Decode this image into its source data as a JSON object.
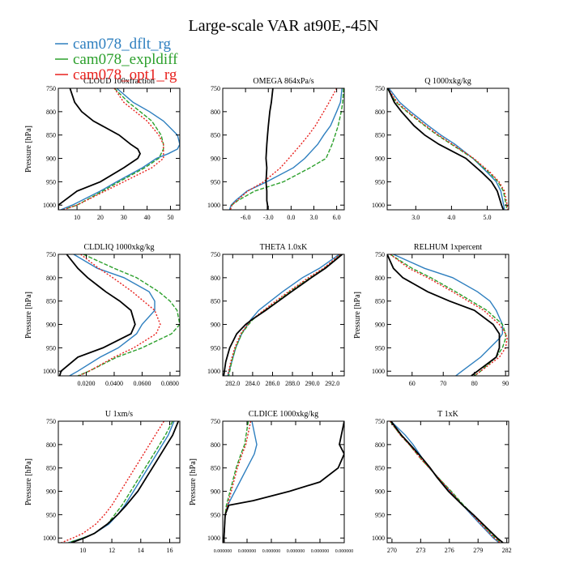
{
  "title": "Large-scale VAR at90E,-45N",
  "legend": {
    "position": "top-left",
    "items": [
      {
        "label": "cam078_dflt_rg",
        "color": "#2e7fbf"
      },
      {
        "label": "cam078_expldiff",
        "color": "#2ca02c"
      },
      {
        "label": "cam078_opt1_rg",
        "color": "#e8211d"
      }
    ]
  },
  "chart_data": [
    {
      "type": "line",
      "title": "CLOUD 100xfraction",
      "ylabel": "Pressure [hPa]",
      "xlim": [
        2,
        54
      ],
      "ylim": [
        1010,
        750
      ],
      "y_inverted": true,
      "xticks": [
        10,
        20,
        30,
        40,
        50
      ],
      "xtick_labels": [
        "10",
        "20",
        "30",
        "40",
        "50"
      ],
      "yticks": [
        750,
        800,
        850,
        900,
        950,
        1000
      ],
      "y": [
        750,
        780,
        800,
        820,
        850,
        870,
        880,
        890,
        900,
        920,
        950,
        970,
        1000,
        1010
      ],
      "series": [
        {
          "color": "#2e7fbf",
          "style": "solid",
          "x": [
            27,
            34,
            41,
            47,
            53,
            54,
            53,
            49,
            44,
            38,
            27,
            20,
            8,
            3
          ]
        },
        {
          "color": "#2ca02c",
          "style": "dashed",
          "x": [
            26,
            32,
            37,
            42,
            46,
            47,
            47,
            46,
            45,
            39,
            28,
            21,
            10,
            4
          ]
        },
        {
          "color": "#e8211d",
          "style": "dotted",
          "x": [
            26,
            30,
            35,
            40,
            45,
            47,
            47,
            47,
            47,
            42,
            30,
            22,
            10,
            4
          ]
        },
        {
          "color": "#000000",
          "style": "solid",
          "x": [
            7,
            9,
            12,
            17,
            28,
            33,
            36,
            37,
            36,
            30,
            20,
            10,
            2,
            2
          ]
        }
      ]
    },
    {
      "type": "line",
      "title": "OMEGA  864xPa/s",
      "ylabel": "",
      "xlim": [
        -9,
        7
      ],
      "ylim": [
        1010,
        750
      ],
      "y_inverted": true,
      "xticks": [
        -6,
        -3,
        0,
        3,
        6
      ],
      "xtick_labels": [
        "-6.0",
        "-3.0",
        "0.0",
        "3.0",
        "6.0"
      ],
      "yticks": [
        750,
        800,
        850,
        900,
        950,
        1000
      ],
      "y": [
        750,
        780,
        800,
        830,
        850,
        870,
        900,
        920,
        950,
        970,
        990,
        1000,
        1010
      ],
      "series": [
        {
          "color": "#2e7fbf",
          "style": "solid",
          "x": [
            6.7,
            6.5,
            6.0,
            5.2,
            4.3,
            3.5,
            1.8,
            0.3,
            -3.2,
            -5.8,
            -7.3,
            -7.9,
            -8.1
          ]
        },
        {
          "color": "#2ca02c",
          "style": "dashed",
          "x": [
            6.9,
            6.8,
            6.6,
            6.2,
            5.8,
            5.4,
            4.6,
            2.5,
            -1.0,
            -4.8,
            -7.0,
            -7.8,
            -8.0
          ]
        },
        {
          "color": "#e8211d",
          "style": "dotted",
          "x": [
            6.0,
            5.0,
            4.3,
            3.2,
            2.3,
            1.3,
            -0.3,
            -1.4,
            -3.6,
            -5.7,
            -7.1,
            -7.8,
            -8.0
          ]
        },
        {
          "color": "#000000",
          "style": "solid",
          "x": [
            -2.4,
            -2.6,
            -2.8,
            -3.0,
            -3.1,
            -3.2,
            -3.3,
            -3.2,
            -3.3,
            -3.2,
            -3.2,
            -3.1,
            -3.1
          ]
        }
      ]
    },
    {
      "type": "line",
      "title": "Q  1000xkg/kg",
      "ylabel": "",
      "xlim": [
        2.2,
        5.6
      ],
      "ylim": [
        1010,
        750
      ],
      "y_inverted": true,
      "xticks": [
        3.0,
        4.0,
        5.0
      ],
      "xtick_labels": [
        "3.0",
        "4.0",
        "5.0"
      ],
      "yticks": [
        750,
        800,
        850,
        900,
        950,
        1000
      ],
      "y": [
        750,
        780,
        800,
        830,
        850,
        870,
        900,
        930,
        950,
        970,
        1000,
        1010
      ],
      "series": [
        {
          "color": "#2e7fbf",
          "style": "solid",
          "x": [
            2.25,
            2.55,
            2.85,
            3.35,
            3.7,
            4.1,
            4.6,
            5.0,
            5.25,
            5.38,
            5.46,
            5.48
          ]
        },
        {
          "color": "#2ca02c",
          "style": "dashed",
          "x": [
            2.2,
            2.45,
            2.75,
            3.25,
            3.6,
            4.0,
            4.6,
            5.05,
            5.3,
            5.45,
            5.53,
            5.55
          ]
        },
        {
          "color": "#e8211d",
          "style": "dotted",
          "x": [
            2.22,
            2.48,
            2.78,
            3.28,
            3.63,
            4.03,
            4.62,
            5.08,
            5.33,
            5.48,
            5.56,
            5.58
          ]
        },
        {
          "color": "#000000",
          "style": "solid",
          "x": [
            2.22,
            2.4,
            2.6,
            2.95,
            3.25,
            3.65,
            4.4,
            4.85,
            5.12,
            5.28,
            5.4,
            5.45
          ]
        }
      ]
    },
    {
      "type": "line",
      "title": "CLDLIQ  1000xkg/kg",
      "ylabel": "Pressure [hPa]",
      "xlim": [
        0,
        0.087
      ],
      "ylim": [
        1010,
        750
      ],
      "y_inverted": true,
      "xticks": [
        0.02,
        0.04,
        0.06,
        0.08
      ],
      "xtick_labels": [
        "0.0200",
        "0.0400",
        "0.0600",
        "0.0800"
      ],
      "yticks": [
        750,
        800,
        850,
        900,
        950,
        1000
      ],
      "y": [
        750,
        780,
        800,
        830,
        850,
        870,
        900,
        920,
        950,
        970,
        1000,
        1010
      ],
      "series": [
        {
          "color": "#2e7fbf",
          "style": "solid",
          "x": [
            0.011,
            0.028,
            0.047,
            0.065,
            0.069,
            0.069,
            0.06,
            0.056,
            0.043,
            0.03,
            0.014,
            0.008
          ]
        },
        {
          "color": "#2ca02c",
          "style": "dashed",
          "x": [
            0.018,
            0.04,
            0.056,
            0.072,
            0.08,
            0.085,
            0.087,
            0.081,
            0.06,
            0.042,
            0.022,
            0.014
          ]
        },
        {
          "color": "#e8211d",
          "style": "dotted",
          "x": [
            0.016,
            0.029,
            0.039,
            0.053,
            0.061,
            0.069,
            0.073,
            0.07,
            0.054,
            0.04,
            0.022,
            0.015
          ]
        },
        {
          "color": "#000000",
          "style": "solid",
          "x": [
            0.006,
            0.014,
            0.021,
            0.034,
            0.044,
            0.052,
            0.055,
            0.052,
            0.032,
            0.014,
            0.002,
            0.001
          ]
        }
      ]
    },
    {
      "type": "line",
      "title": "THETA  1.0xK",
      "ylabel": "",
      "xlim": [
        281,
        293.2
      ],
      "ylim": [
        1010,
        750
      ],
      "y_inverted": true,
      "xticks": [
        282,
        284,
        286,
        288,
        290,
        292
      ],
      "xtick_labels": [
        "282.0",
        "284.0",
        "286.0",
        "288.0",
        "290.0",
        "292.0"
      ],
      "yticks": [
        750,
        800,
        850,
        900,
        950,
        1000
      ],
      "y": [
        750,
        780,
        800,
        830,
        850,
        870,
        890,
        900,
        920,
        950,
        980,
        1010
      ],
      "series": [
        {
          "color": "#2e7fbf",
          "style": "solid",
          "x": [
            292.7,
            290.7,
            289.0,
            287.0,
            285.8,
            284.6,
            283.8,
            283.5,
            282.9,
            282.3,
            281.9,
            281.5
          ]
        },
        {
          "color": "#2ca02c",
          "style": "dashed",
          "x": [
            292.9,
            291.2,
            289.8,
            287.7,
            286.5,
            285.2,
            284.0,
            283.6,
            282.9,
            282.3,
            281.9,
            281.6
          ]
        },
        {
          "color": "#e8211d",
          "style": "dotted",
          "x": [
            292.8,
            291.1,
            289.6,
            287.6,
            286.3,
            285.1,
            283.9,
            283.5,
            282.8,
            282.2,
            281.8,
            281.5
          ]
        },
        {
          "color": "#000000",
          "style": "solid",
          "x": [
            293.0,
            291.3,
            289.9,
            287.9,
            286.6,
            285.3,
            283.9,
            283.3,
            282.4,
            281.7,
            281.3,
            281.1
          ]
        }
      ]
    },
    {
      "type": "line",
      "title": "RELHUM  1xpercent",
      "ylabel": "Pressure [hPa]",
      "xlim": [
        52,
        91
      ],
      "ylim": [
        1010,
        750
      ],
      "y_inverted": true,
      "xticks": [
        60,
        70,
        80,
        90
      ],
      "xtick_labels": [
        "60",
        "70",
        "80",
        "90"
      ],
      "yticks": [
        750,
        800,
        850,
        900,
        950,
        1000
      ],
      "y": [
        750,
        780,
        800,
        830,
        850,
        870,
        900,
        920,
        930,
        950,
        970,
        1000,
        1010
      ],
      "series": [
        {
          "color": "#2e7fbf",
          "style": "solid",
          "x": [
            54,
            64,
            73,
            81,
            85,
            87,
            89,
            89,
            88,
            85,
            82,
            76,
            74
          ]
        },
        {
          "color": "#2ca02c",
          "style": "dashed",
          "x": [
            53,
            60,
            66,
            74,
            79,
            84,
            89,
            90,
            90,
            89,
            87,
            82,
            80
          ]
        },
        {
          "color": "#e8211d",
          "style": "dotted",
          "x": [
            53,
            59,
            65,
            73,
            78,
            83,
            88,
            90,
            90.5,
            90,
            88,
            82,
            80
          ]
        },
        {
          "color": "#000000",
          "style": "solid",
          "x": [
            52,
            54,
            57,
            65,
            72,
            80,
            86,
            88,
            88,
            88,
            87,
            81,
            79
          ]
        }
      ]
    },
    {
      "type": "line",
      "title": "U  1xm/s",
      "ylabel": "Pressure [hPa]",
      "xlim": [
        8.3,
        16.7
      ],
      "ylim": [
        1010,
        750
      ],
      "y_inverted": true,
      "xticks": [
        10,
        12,
        14,
        16
      ],
      "xtick_labels": [
        "10",
        "12",
        "14",
        "16"
      ],
      "yticks": [
        750,
        800,
        850,
        900,
        950,
        1000
      ],
      "y": [
        750,
        780,
        800,
        830,
        850,
        870,
        900,
        930,
        950,
        970,
        990,
        1000,
        1010
      ],
      "series": [
        {
          "color": "#2e7fbf",
          "style": "solid",
          "x": [
            16.3,
            15.9,
            15.5,
            14.9,
            14.5,
            14.1,
            13.5,
            12.9,
            12.4,
            11.8,
            10.8,
            10.0,
            9.0
          ]
        },
        {
          "color": "#2ca02c",
          "style": "dashed",
          "x": [
            16.2,
            15.7,
            15.3,
            14.7,
            14.3,
            13.9,
            13.3,
            12.7,
            12.2,
            11.7,
            10.8,
            10.0,
            9.0
          ]
        },
        {
          "color": "#e8211d",
          "style": "dotted",
          "x": [
            15.6,
            15.0,
            14.6,
            14.0,
            13.6,
            13.2,
            12.6,
            12.0,
            11.5,
            10.9,
            10.0,
            9.3,
            8.5
          ]
        },
        {
          "color": "#000000",
          "style": "solid",
          "x": [
            16.6,
            16.2,
            15.8,
            15.2,
            14.8,
            14.4,
            13.8,
            13.0,
            12.4,
            11.7,
            10.8,
            10.1,
            9.2
          ]
        }
      ]
    },
    {
      "type": "line",
      "title": "CLDICE  1000xkg/kg",
      "ylabel": "Pressure [hPa]",
      "xlim": [
        0,
        1
      ],
      "ylim": [
        1010,
        750
      ],
      "y_inverted": true,
      "xticks": [
        0.0,
        0.2,
        0.4,
        0.6,
        0.8,
        1.0
      ],
      "xtick_labels": [
        "0.000000",
        "0.000000",
        "0.000000",
        "0.000000",
        "0.000000",
        "0.000000"
      ],
      "yticks": [
        750,
        800,
        850,
        900,
        950,
        1000
      ],
      "y": [
        750,
        800,
        820,
        850,
        880,
        900,
        920,
        930,
        950,
        1000,
        1010
      ],
      "series": [
        {
          "color": "#2e7fbf",
          "style": "solid",
          "x": [
            0.24,
            0.28,
            0.26,
            0.2,
            0.14,
            0.1,
            0.06,
            0.04,
            0.02,
            0.01,
            0.01
          ]
        },
        {
          "color": "#2ca02c",
          "style": "dashed",
          "x": [
            0.21,
            0.18,
            0.15,
            0.11,
            0.08,
            0.06,
            0.04,
            0.03,
            0.02,
            0.01,
            0.01
          ]
        },
        {
          "color": "#e8211d",
          "style": "dotted",
          "x": [
            0.23,
            0.19,
            0.16,
            0.12,
            0.09,
            0.07,
            0.05,
            0.04,
            0.02,
            0.01,
            0.01
          ]
        },
        {
          "color": "#000000",
          "style": "solid",
          "x": [
            1.0,
            0.96,
            1.0,
            0.95,
            0.8,
            0.55,
            0.25,
            0.05,
            0.02,
            0.01,
            0.01
          ]
        }
      ]
    },
    {
      "type": "line",
      "title": "T  1xK",
      "ylabel": "",
      "xlim": [
        269.5,
        282.2
      ],
      "ylim": [
        1010,
        750
      ],
      "y_inverted": true,
      "xticks": [
        270,
        273,
        276,
        279,
        282
      ],
      "xtick_labels": [
        "270",
        "273",
        "276",
        "279",
        "282"
      ],
      "yticks": [
        750,
        800,
        850,
        900,
        950,
        1000
      ],
      "y": [
        750,
        780,
        800,
        830,
        850,
        870,
        900,
        930,
        950,
        970,
        1000,
        1010
      ],
      "series": [
        {
          "color": "#2e7fbf",
          "style": "solid",
          "x": [
            269.9,
            271.4,
            272.2,
            273.2,
            273.9,
            274.8,
            276.1,
            277.4,
            278.3,
            279.2,
            280.6,
            281.2
          ]
        },
        {
          "color": "#2ca02c",
          "style": "dashed",
          "x": [
            269.8,
            270.9,
            271.8,
            273.0,
            273.9,
            274.8,
            276.2,
            277.5,
            278.5,
            279.4,
            280.8,
            281.4
          ]
        },
        {
          "color": "#e8211d",
          "style": "dotted",
          "x": [
            269.8,
            270.9,
            271.8,
            273.0,
            273.9,
            274.8,
            276.1,
            277.4,
            278.4,
            279.3,
            280.7,
            281.3
          ]
        },
        {
          "color": "#000000",
          "style": "solid",
          "x": [
            269.9,
            271.0,
            271.9,
            273.2,
            274.0,
            274.7,
            275.9,
            277.4,
            278.5,
            279.5,
            281.0,
            281.6
          ]
        }
      ]
    }
  ]
}
